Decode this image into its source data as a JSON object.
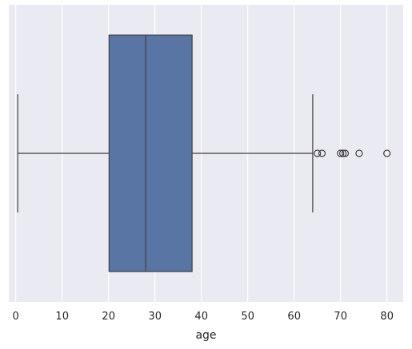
{
  "chart_data": {
    "type": "box",
    "orientation": "horizontal",
    "xlabel": "age",
    "xlim": [
      -1.5,
      83.5
    ],
    "xticks": [
      0,
      10,
      20,
      30,
      40,
      50,
      60,
      70,
      80
    ],
    "xtick_labels": [
      "0",
      "10",
      "20",
      "30",
      "40",
      "50",
      "60",
      "70",
      "80"
    ],
    "grid": true,
    "box": {
      "whisker_low": 0.42,
      "q1": 20.1,
      "median": 28.0,
      "q3": 38.0,
      "whisker_high": 64.0
    },
    "outliers": [
      65.0,
      66.0,
      70.0,
      70.5,
      71.0,
      74.0,
      80.0
    ],
    "colors": {
      "background": "#eaeaf2",
      "grid": "#ffffff",
      "box_fill": "#5875a4",
      "box_edge": "#3f3f3f",
      "outlier_edge": "#3f3f3f"
    }
  }
}
